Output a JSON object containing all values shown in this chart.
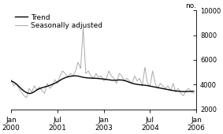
{
  "title": "",
  "ylabel_right": "no.",
  "ylim": [
    2000,
    10000
  ],
  "yticks": [
    2000,
    4000,
    6000,
    8000,
    10000
  ],
  "xtick_labels": [
    "Jan\n2000",
    "Jul\n2001",
    "Jan\n2003",
    "Jul\n2004",
    "Jan\n2006"
  ],
  "xtick_positions": [
    0,
    18,
    36,
    54,
    72
  ],
  "legend_trend": "Trend",
  "legend_seasonal": "Seasonally adjusted",
  "trend_color": "#000000",
  "seasonal_color": "#aaaaaa",
  "trend_lw": 1.0,
  "seasonal_lw": 0.7,
  "background_color": "#ffffff",
  "trend_data": [
    4300,
    4200,
    4050,
    3850,
    3650,
    3480,
    3350,
    3280,
    3320,
    3430,
    3570,
    3680,
    3750,
    3810,
    3870,
    3940,
    4020,
    4110,
    4220,
    4350,
    4470,
    4560,
    4630,
    4670,
    4700,
    4710,
    4690,
    4640,
    4590,
    4560,
    4540,
    4530,
    4520,
    4510,
    4490,
    4470,
    4450,
    4420,
    4390,
    4360,
    4350,
    4360,
    4380,
    4370,
    4330,
    4270,
    4190,
    4110,
    4060,
    4020,
    3990,
    3970,
    3950,
    3920,
    3880,
    3840,
    3800,
    3760,
    3720,
    3680,
    3640,
    3600,
    3560,
    3520,
    3490,
    3470,
    3450,
    3440,
    3440,
    3450,
    3460,
    3470
  ],
  "seasonal_data": [
    4400,
    3900,
    4100,
    3700,
    3400,
    3100,
    2950,
    3700,
    3400,
    3900,
    3600,
    3800,
    3500,
    3300,
    4100,
    3700,
    3900,
    4400,
    4100,
    4700,
    5100,
    4900,
    4600,
    4900,
    4700,
    5100,
    5800,
    5300,
    8600,
    4900,
    5100,
    4700,
    4500,
    4900,
    4600,
    4700,
    4300,
    4500,
    5100,
    4700,
    4500,
    4100,
    4900,
    4700,
    4300,
    4500,
    4300,
    4100,
    4700,
    4300,
    4500,
    3900,
    5400,
    4100,
    3900,
    5100,
    4100,
    3700,
    4100,
    3900,
    3700,
    3900,
    3500,
    4100,
    3400,
    3700,
    3300,
    3100,
    3500,
    3700,
    3400,
    3300
  ]
}
